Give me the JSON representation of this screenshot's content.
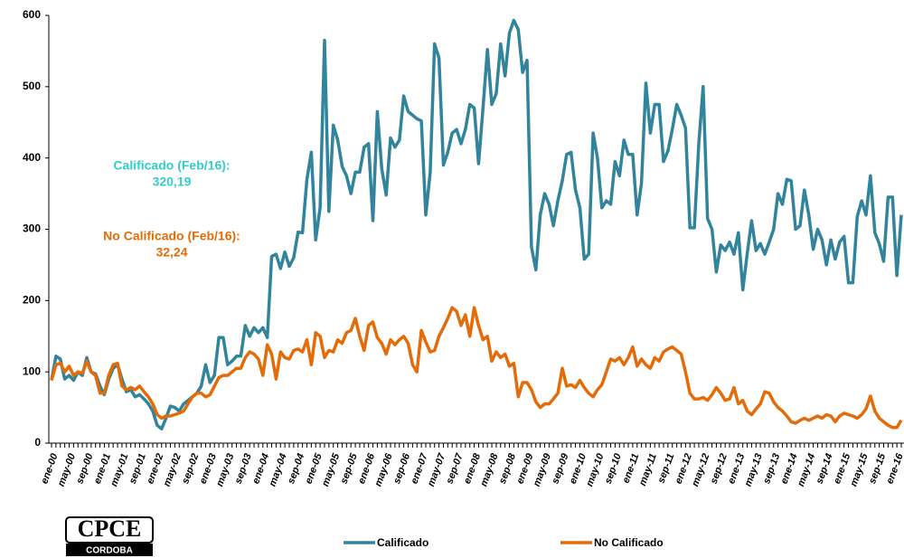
{
  "chart_data": {
    "type": "line",
    "categories": [
      "ene-00",
      null,
      null,
      null,
      "may-00",
      null,
      null,
      null,
      "sep-00",
      null,
      null,
      null,
      "ene-01",
      null,
      null,
      null,
      "may-01",
      null,
      null,
      null,
      "sep-01",
      null,
      null,
      null,
      "ene-02",
      null,
      null,
      null,
      "may-02",
      null,
      null,
      null,
      "sep-02",
      null,
      null,
      null,
      "ene-03",
      null,
      null,
      null,
      "may-03",
      null,
      null,
      null,
      "sep-03",
      null,
      null,
      null,
      "ene-04",
      null,
      null,
      null,
      "may-04",
      null,
      null,
      null,
      "sep-04",
      null,
      null,
      null,
      "ene-05",
      null,
      null,
      null,
      "may-05",
      null,
      null,
      null,
      "sep-05",
      null,
      null,
      null,
      "ene-06",
      null,
      null,
      null,
      "may-06",
      null,
      null,
      null,
      "sep-06",
      null,
      null,
      null,
      "ene-07",
      null,
      null,
      null,
      "may-07",
      null,
      null,
      null,
      "sep-07",
      null,
      null,
      null,
      "ene-08",
      null,
      null,
      null,
      "may-08",
      null,
      null,
      null,
      "sep-08",
      null,
      null,
      null,
      "ene-09",
      null,
      null,
      null,
      "may-09",
      null,
      null,
      null,
      "sep-09",
      null,
      null,
      null,
      "ene-10",
      null,
      null,
      null,
      "may-10",
      null,
      null,
      null,
      "sep-10",
      null,
      null,
      null,
      "ene-11",
      null,
      null,
      null,
      "may-11",
      null,
      null,
      null,
      "sep-11",
      null,
      null,
      null,
      "ene-12",
      null,
      null,
      null,
      "may-12",
      null,
      null,
      null,
      "sep-12",
      null,
      null,
      null,
      "ene-13",
      null,
      null,
      null,
      "may-13",
      null,
      null,
      null,
      "sep-13",
      null,
      null,
      null,
      "ene-14",
      null,
      null,
      null,
      "may-14",
      null,
      null,
      null,
      "sep-14",
      null,
      null,
      null,
      "ene-15",
      null,
      null,
      null,
      "may-15",
      null,
      null,
      null,
      "sep-15",
      null,
      null,
      null,
      "ene-16",
      null
    ],
    "series": [
      {
        "name": "Calificado",
        "color": "#31849b",
        "values": [
          88,
          122,
          118,
          90,
          95,
          88,
          100,
          95,
          120,
          100,
          97,
          80,
          68,
          90,
          105,
          110,
          90,
          72,
          75,
          65,
          68,
          62,
          55,
          45,
          25,
          20,
          35,
          52,
          50,
          45,
          55,
          60,
          65,
          70,
          80,
          110,
          85,
          95,
          148,
          148,
          110,
          115,
          122,
          122,
          165,
          150,
          162,
          155,
          162,
          148,
          262,
          265,
          245,
          268,
          248,
          260,
          296,
          295,
          370,
          408,
          285,
          330,
          565,
          325,
          446,
          425,
          388,
          375,
          350,
          380,
          380,
          415,
          420,
          312,
          465,
          385,
          348,
          428,
          415,
          425,
          487,
          465,
          460,
          455,
          452,
          320,
          380,
          560,
          540,
          390,
          408,
          435,
          440,
          420,
          440,
          475,
          470,
          392,
          470,
          552,
          475,
          490,
          560,
          515,
          575,
          593,
          580,
          520,
          537,
          275,
          243,
          320,
          350,
          335,
          305,
          340,
          368,
          405,
          408,
          355,
          330,
          258,
          265,
          435,
          400,
          330,
          340,
          335,
          395,
          375,
          425,
          405,
          405,
          320,
          365,
          505,
          435,
          475,
          475,
          395,
          410,
          440,
          475,
          460,
          442,
          302,
          302,
          420,
          500,
          315,
          300,
          240,
          278,
          270,
          282,
          265,
          295,
          215,
          265,
          312,
          270,
          280,
          265,
          282,
          300,
          350,
          335,
          370,
          368,
          300,
          305,
          355,
          320,
          272,
          300,
          285,
          250,
          285,
          258,
          282,
          290,
          225,
          225,
          318,
          340,
          320,
          375,
          295,
          280,
          255,
          345,
          345,
          235,
          320.19
        ]
      },
      {
        "name": "No Calificado",
        "color": "#e36c09",
        "values": [
          88,
          110,
          112,
          100,
          108,
          95,
          100,
          98,
          115,
          100,
          95,
          70,
          70,
          95,
          110,
          112,
          80,
          75,
          78,
          75,
          80,
          72,
          65,
          55,
          40,
          35,
          38,
          38,
          40,
          42,
          45,
          55,
          65,
          70,
          70,
          65,
          68,
          80,
          92,
          95,
          95,
          100,
          105,
          105,
          120,
          128,
          125,
          118,
          95,
          138,
          125,
          90,
          128,
          120,
          118,
          130,
          132,
          128,
          145,
          110,
          155,
          150,
          120,
          130,
          128,
          145,
          140,
          155,
          158,
          175,
          150,
          130,
          165,
          170,
          148,
          140,
          125,
          145,
          138,
          145,
          150,
          140,
          110,
          100,
          158,
          142,
          128,
          130,
          150,
          162,
          175,
          190,
          185,
          165,
          180,
          150,
          190,
          165,
          145,
          150,
          115,
          128,
          120,
          125,
          108,
          112,
          65,
          85,
          85,
          75,
          58,
          50,
          55,
          55,
          62,
          70,
          105,
          80,
          82,
          78,
          88,
          78,
          70,
          65,
          75,
          82,
          100,
          118,
          115,
          120,
          110,
          120,
          135,
          108,
          118,
          110,
          105,
          120,
          115,
          128,
          132,
          135,
          130,
          125,
          100,
          70,
          62,
          62,
          64,
          60,
          68,
          78,
          70,
          60,
          62,
          78,
          55,
          60,
          45,
          40,
          48,
          55,
          72,
          70,
          58,
          50,
          45,
          38,
          30,
          28,
          32,
          35,
          32,
          35,
          38,
          35,
          40,
          38,
          30,
          38,
          42,
          40,
          38,
          35,
          40,
          48,
          66,
          45,
          35,
          30,
          25,
          22,
          22,
          32.24
        ]
      }
    ],
    "ylim": [
      0,
      600
    ],
    "yticks": [
      0,
      100,
      200,
      300,
      400,
      500,
      600
    ],
    "annotations": [
      {
        "text": "Calificado (Feb/16):",
        "value": "320,19",
        "color": "#33cccc"
      },
      {
        "text": "No Calificado (Feb/16):",
        "value": "32,24",
        "color": "#e36c09"
      }
    ],
    "logo": {
      "text": "CPCE",
      "subtext": "CORDOBA"
    }
  }
}
